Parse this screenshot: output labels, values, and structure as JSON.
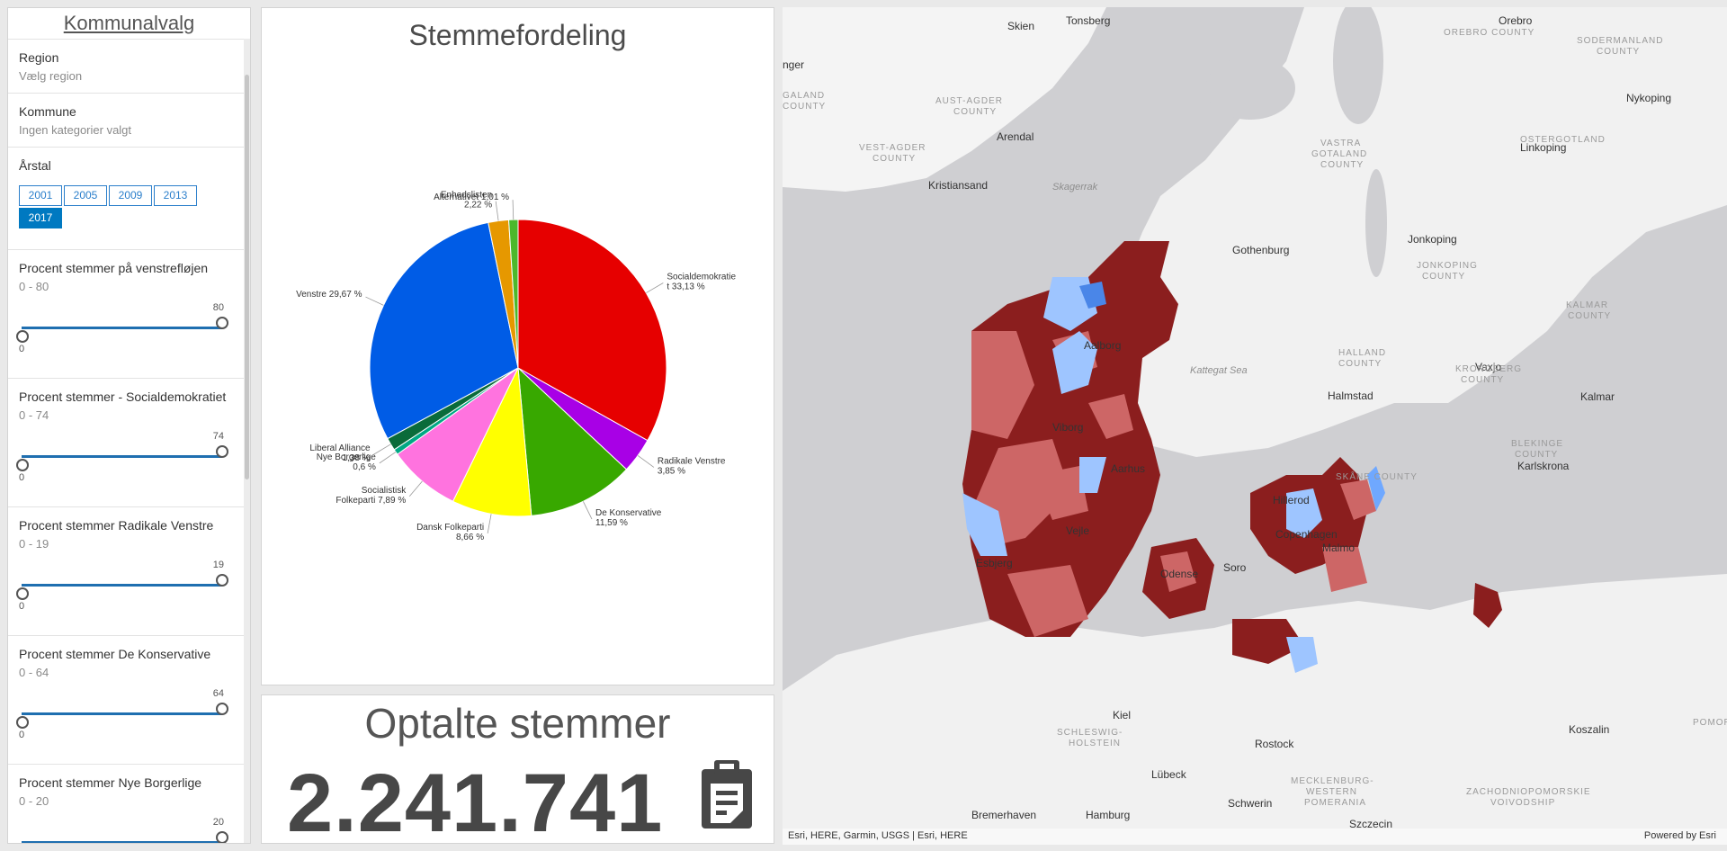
{
  "sidebar": {
    "title": "Kommunalvalg",
    "region": {
      "label": "Region",
      "value": "Vælg region"
    },
    "kommune": {
      "label": "Kommune",
      "value": "Ingen kategorier valgt"
    },
    "year": {
      "label": "Årstal",
      "options": [
        "2001",
        "2005",
        "2009",
        "2013",
        "2017"
      ],
      "selected": "2017"
    },
    "sliders": [
      {
        "label": "Procent stemmer på venstrefløjen",
        "range": "0 - 80",
        "min": "0",
        "max": "80"
      },
      {
        "label": "Procent stemmer - Socialdemokratiet",
        "range": "0 - 74",
        "min": "0",
        "max": "74"
      },
      {
        "label": "Procent stemmer Radikale Venstre",
        "range": "0 - 19",
        "min": "0",
        "max": "19"
      },
      {
        "label": "Procent stemmer De Konservative",
        "range": "0 - 64",
        "min": "0",
        "max": "64"
      },
      {
        "label": "Procent stemmer Nye Borgerlige",
        "range": "0 - 20",
        "min": "0",
        "max": "20"
      }
    ]
  },
  "pie_panel": {
    "title": "Stemmefordeling"
  },
  "chart_data": {
    "type": "pie",
    "title": "Stemmefordeling",
    "slices": [
      {
        "name": "Socialdemokratiet",
        "value": 33.13,
        "label": [
          "Socialdemokratie",
          "t 33,13 %"
        ],
        "color": "#e60000"
      },
      {
        "name": "Radikale Venstre",
        "value": 3.85,
        "label": [
          "Radikale Venstre",
          "3,85 %"
        ],
        "color": "#a800e6"
      },
      {
        "name": "De Konservative",
        "value": 11.59,
        "label": [
          "De Konservative",
          "11,59 %"
        ],
        "color": "#38a800"
      },
      {
        "name": "Dansk Folkeparti",
        "value": 8.66,
        "label": [
          "Dansk Folkeparti",
          "8,66 %"
        ],
        "color": "#ffff00"
      },
      {
        "name": "Socialistisk Folkeparti",
        "value": 7.89,
        "label": [
          "Socialistisk",
          "Folkeparti 7,89 %"
        ],
        "color": "#ff73df"
      },
      {
        "name": "Nye Borgerlige",
        "value": 0.6,
        "label": [
          "Nye Borgerlige",
          "0,6 %"
        ],
        "color": "#00a884"
      },
      {
        "name": "Liberal Alliance",
        "value": 1.38,
        "label": [
          "Liberal Alliance",
          "1,38 %"
        ],
        "color": "#0a6b3a"
      },
      {
        "name": "Venstre",
        "value": 29.67,
        "label": [
          "Venstre 29,67 %"
        ],
        "color": "#005ce6"
      },
      {
        "name": "Enhedslisten",
        "value": 2.22,
        "label": [
          "Enhedslisten",
          "2,22 %"
        ],
        "color": "#e69800"
      },
      {
        "name": "Alternativet",
        "value": 1.01,
        "label": [
          "Alternativet 1,01 %"
        ],
        "color": "#4cb82c"
      }
    ]
  },
  "count_panel": {
    "title": "Optalte stemmer",
    "value": "2.241.741",
    "icon": "clipboard-icon"
  },
  "map": {
    "attribution": "Esri, HERE, Garmin, USGS | Esri, HERE",
    "powered": "Powered by Esri",
    "cities": [
      "Skien",
      "Tonsberg",
      "Orebro",
      "Arendal",
      "Kristiansand",
      "Linkoping",
      "Nykoping",
      "Gothenburg",
      "Jonkoping",
      "Aalborg",
      "Halmstad",
      "Vaxjo",
      "Kalmar",
      "Viborg",
      "Aarhus",
      "Karlskrona",
      "Hillerod",
      "Copenhagen",
      "Malmo",
      "Vejle",
      "Esbjerg",
      "Odense",
      "Soro",
      "Kiel",
      "Rostock",
      "Koszalin",
      "Lübeck",
      "Schwerin",
      "Bremerhaven",
      "Hamburg",
      "Szczecin",
      "nger"
    ],
    "regions": [
      "AUST-AGDER COUNTY",
      "VEST-AGDER COUNTY",
      "OREBRO COUNTY",
      "SODERMANLAND COUNTY",
      "OSTERGOTLAND COUNTY",
      "VASTRA GOTALAND COUNTY",
      "JONKOPING COUNTY",
      "KALMAR COUNTY",
      "HALLAND COUNTY",
      "KRONOBERG COUNTY",
      "BLEKINGE COUNTY",
      "SKÅNE COUNTY",
      "SCHLESWIG-HOLSTEIN",
      "MECKLENBURG-WESTERN POMERANIA",
      "ZACHODNIOPOMORSKIE VOIVODSHIP",
      "ROGALAND COUNTY",
      "POMOR"
    ],
    "seas": [
      "Skagerrak",
      "Kattegat Sea"
    ]
  }
}
